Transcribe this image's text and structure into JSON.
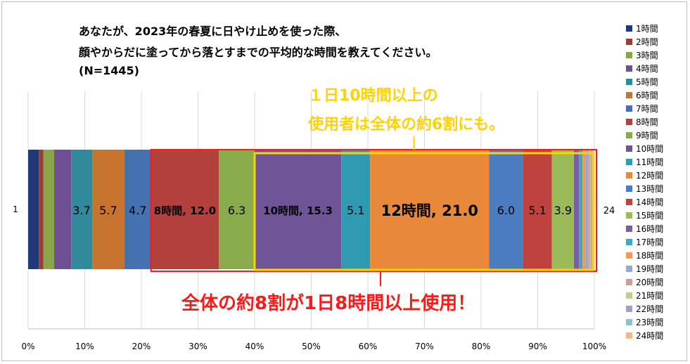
{
  "chart_data": {
    "type": "bar",
    "orientation": "horizontal-stacked-100",
    "title_lines": [
      "あなたが、2023年の春夏に日やけ止めを使った際、",
      "顔やからだに塗ってから落とすまでの平均的な時間を教えてください。",
      "(N=1445)"
    ],
    "category_label": "1",
    "end_label": "24",
    "x_ticks": [
      "0%",
      "10%",
      "20%",
      "30%",
      "40%",
      "50%",
      "60%",
      "70%",
      "80%",
      "90%",
      "100%"
    ],
    "xlim": [
      0,
      100
    ],
    "series": [
      {
        "name": "1時間",
        "value": 1.9,
        "color": "#1f3a7a"
      },
      {
        "name": "2時間",
        "value": 0.8,
        "color": "#a03a33"
      },
      {
        "name": "3時間",
        "value": 1.9,
        "color": "#88a548"
      },
      {
        "name": "4時間",
        "value": 3.0,
        "color": "#6f4f94"
      },
      {
        "name": "5時間",
        "value": 3.7,
        "label": "3.7",
        "color": "#318a9c"
      },
      {
        "name": "6時間",
        "value": 5.7,
        "label": "5.7",
        "color": "#c8732e"
      },
      {
        "name": "7時間",
        "value": 4.7,
        "label": "4.7",
        "color": "#4571b0"
      },
      {
        "name": "8時間",
        "value": 12.0,
        "label": "8時間, 12.0",
        "color": "#b2403c"
      },
      {
        "name": "9時間",
        "value": 6.3,
        "label": "6.3",
        "color": "#8aab4b"
      },
      {
        "name": "10時間",
        "value": 15.3,
        "label": "10時間, 15.3",
        "color": "#6f5597"
      },
      {
        "name": "11時間",
        "value": 5.1,
        "label": "5.1",
        "color": "#2f9ab1"
      },
      {
        "name": "12時間",
        "value": 21.0,
        "label": "12時間, 21.0",
        "color": "#e8883a"
      },
      {
        "name": "13時間",
        "value": 6.0,
        "label": "6.0",
        "color": "#4b7cc0"
      },
      {
        "name": "14時間",
        "value": 5.1,
        "label": "5.1",
        "color": "#c0423f"
      },
      {
        "name": "15時間",
        "value": 3.9,
        "label": "3.9",
        "color": "#9bbb59"
      },
      {
        "name": "16時間",
        "value": 0.9,
        "color": "#7c5fa3"
      },
      {
        "name": "17時間",
        "value": 0.6,
        "color": "#3fa7c2"
      },
      {
        "name": "18時間",
        "value": 0.5,
        "color": "#f29b4d"
      },
      {
        "name": "19時間",
        "value": 0.5,
        "color": "#93a9cf"
      },
      {
        "name": "20時間",
        "value": 0.3,
        "color": "#d39a97"
      },
      {
        "name": "21時間",
        "value": 0.2,
        "color": "#bed08f"
      },
      {
        "name": "22時間",
        "value": 0.2,
        "color": "#a89bc0"
      },
      {
        "name": "23時間",
        "value": 0.2,
        "color": "#8ac2d3"
      },
      {
        "name": "24時間",
        "value": 0.2,
        "color": "#f6b889"
      }
    ],
    "highlight_red": {
      "from_series": "8時間",
      "to_series": "24時間",
      "text": "全体の約8割が1日8時間以上使用！",
      "color": "#ff1a1a"
    },
    "highlight_yellow": {
      "from_series": "10時間",
      "to_series": "24時間",
      "lines": [
        "１日10時間以上の",
        "使用者は全体の約6割にも。"
      ],
      "color": "#ffd200"
    }
  }
}
